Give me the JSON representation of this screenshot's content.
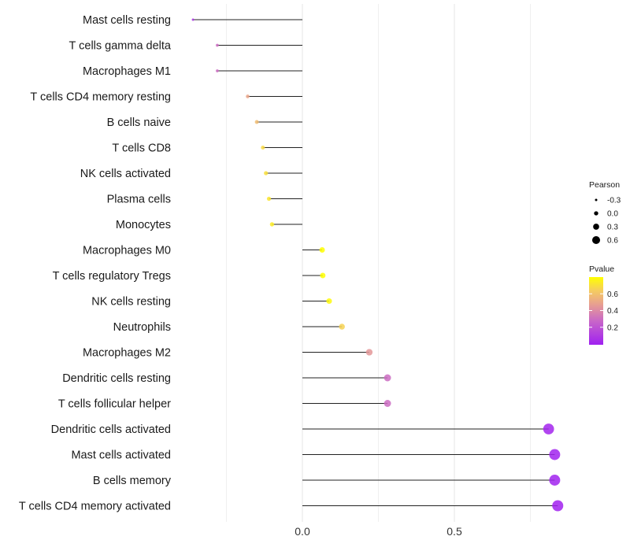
{
  "chart_data": {
    "type": "lollipop",
    "title": "",
    "xlabel": "",
    "ylabel": "",
    "xlim": [
      -0.42,
      1.05
    ],
    "x_ticks": [
      {
        "value": 0.0,
        "label": "0.0"
      },
      {
        "value": 0.5,
        "label": "0.5"
      }
    ],
    "grid": true,
    "categories": [
      "Mast cells resting",
      "T cells gamma delta",
      "Macrophages M1",
      "T cells CD4 memory resting",
      "B cells naive",
      "T cells CD8",
      "NK cells activated",
      "Plasma cells",
      "Monocytes",
      "Macrophages M0",
      "T cells regulatory  Tregs",
      "NK cells resting",
      "Neutrophils",
      "Macrophages M2",
      "Dendritic cells resting",
      "T cells follicular helper",
      "Dendritic cells activated",
      "Mast cells activated",
      "B cells memory",
      "T cells CD4 memory activated"
    ],
    "pearson": [
      -0.36,
      -0.28,
      -0.28,
      -0.18,
      -0.15,
      -0.13,
      -0.12,
      -0.11,
      -0.1,
      0.065,
      0.067,
      0.088,
      0.13,
      0.22,
      0.28,
      0.28,
      0.81,
      0.83,
      0.83,
      0.84
    ],
    "pvalue": [
      0.08,
      0.3,
      0.3,
      0.5,
      0.58,
      0.68,
      0.7,
      0.72,
      0.74,
      0.8,
      0.8,
      0.78,
      0.66,
      0.45,
      0.3,
      0.3,
      0.02,
      0.01,
      0.01,
      0.005
    ],
    "legend": {
      "placement": "right",
      "size_title": "Pearson",
      "size_entries": [
        {
          "value": -0.3,
          "label": "-0.3"
        },
        {
          "value": 0.0,
          "label": "0.0"
        },
        {
          "value": 0.3,
          "label": "0.3"
        },
        {
          "value": 0.6,
          "label": "0.6"
        }
      ],
      "color_title": "Pvalue",
      "color_range": [
        0.0,
        0.8
      ],
      "color_ticks": [
        {
          "value": 0.6,
          "label": "0.6"
        },
        {
          "value": 0.4,
          "label": "0.4"
        },
        {
          "value": 0.2,
          "label": "0.2"
        }
      ]
    },
    "colors": {
      "low": "#a020f0",
      "mid": "#d87fa8",
      "midhigh": "#f0b070",
      "high": "#ffff00"
    }
  }
}
